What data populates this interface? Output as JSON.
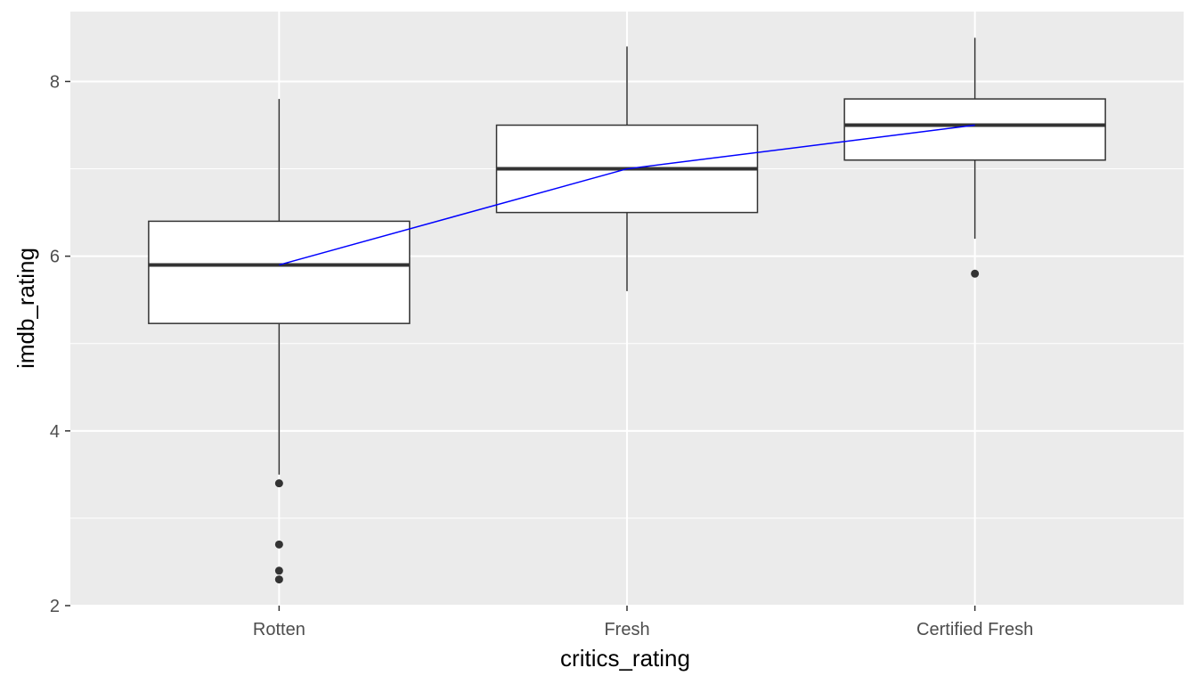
{
  "chart_data": {
    "type": "boxplot",
    "xlabel": "critics_rating",
    "ylabel": "imdb_rating",
    "categories": [
      "Rotten",
      "Fresh",
      "Certified Fresh"
    ],
    "ylim": [
      2,
      8.8
    ],
    "yticks": [
      2,
      4,
      6,
      8
    ],
    "yminor": [
      3,
      5,
      7
    ],
    "grid": true,
    "boxes": [
      {
        "category": "Rotten",
        "q1": 5.23,
        "median": 5.9,
        "q3": 6.4,
        "whisker_low": 3.5,
        "whisker_high": 7.8,
        "outliers": [
          3.4,
          2.7,
          2.4,
          2.3
        ]
      },
      {
        "category": "Fresh",
        "q1": 6.5,
        "median": 7.0,
        "q3": 7.5,
        "whisker_low": 5.6,
        "whisker_high": 8.4,
        "outliers": []
      },
      {
        "category": "Certified Fresh",
        "q1": 7.1,
        "median": 7.5,
        "q3": 7.8,
        "whisker_low": 6.2,
        "whisker_high": 8.5,
        "outliers": [
          5.8
        ]
      }
    ],
    "median_line": {
      "values": [
        5.9,
        7.0,
        7.5
      ],
      "color": "#0000ff"
    },
    "colors": {
      "panel": "#ebebeb",
      "grid": "#ffffff",
      "box_fill": "#ffffff",
      "box_stroke": "#333333",
      "tick_text": "#4d4d4d",
      "tick_mark": "#333333"
    }
  }
}
